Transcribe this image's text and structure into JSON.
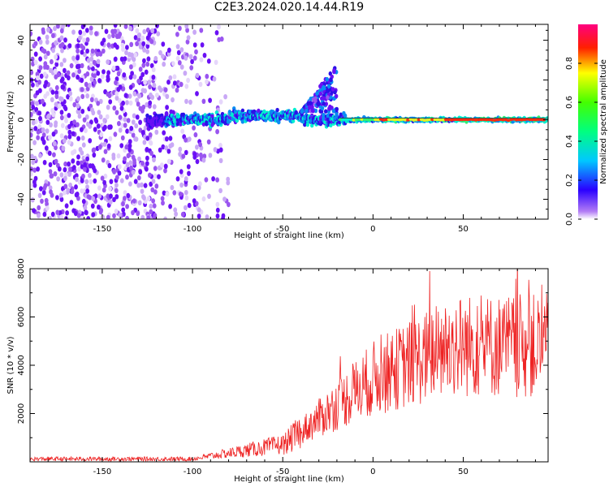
{
  "title": "C2E3.2024.020.14.44.R19",
  "chart_data": [
    {
      "type": "heatmap",
      "xlabel": "Height of straight line (km)",
      "ylabel": "Frequency (Hz)",
      "xlim": [
        -190,
        97
      ],
      "ylim": [
        -50,
        48
      ],
      "xticks": [
        -150,
        -100,
        -50,
        0,
        50
      ],
      "yticks": [
        -40,
        -20,
        0,
        20,
        40
      ],
      "colorbar": {
        "label": "Normalized spectral amplitude",
        "range": [
          0.0,
          1.0
        ],
        "ticks": [
          "0.0",
          "0.2",
          "0.4",
          "0.6",
          "0.8"
        ],
        "tick_values": [
          0.0,
          0.2,
          0.4,
          0.6,
          0.8
        ]
      },
      "grid": false
    },
    {
      "type": "line",
      "xlabel": "Height of straight line (km)",
      "ylabel": "SNR (10 * v/v)",
      "xlim": [
        -190,
        97
      ],
      "ylim": [
        0,
        8000
      ],
      "xticks": [
        -150,
        -100,
        -50,
        0,
        50
      ],
      "yticks": [
        2000,
        4000,
        6000,
        8000
      ],
      "line_color": "#ee2222",
      "grid": false
    }
  ]
}
